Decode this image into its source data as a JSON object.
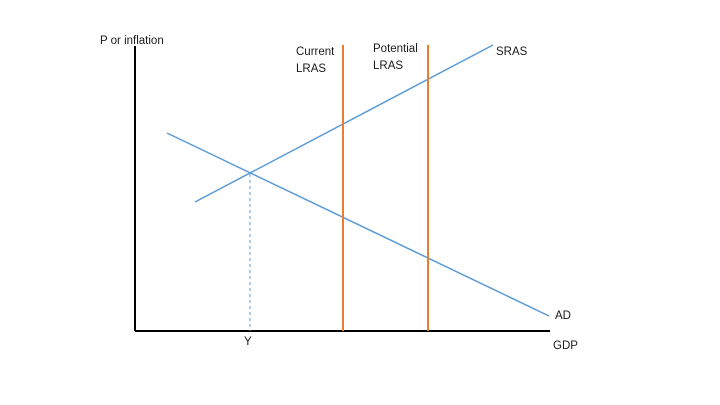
{
  "diagram": {
    "axes": {
      "y_label": "P or inflation",
      "x_label": "GDP"
    },
    "curves": {
      "sras": {
        "label": "SRAS"
      },
      "ad": {
        "label": "AD"
      },
      "current_lras": {
        "label_line1": "Current",
        "label_line2": "LRAS"
      },
      "potential_lras": {
        "label_line1": "Potential",
        "label_line2": "LRAS"
      }
    },
    "equilibrium": {
      "x_label": "Y"
    },
    "colors": {
      "axis": "#000000",
      "curve_blue": "#5b9bd5",
      "lras_orange": "#ed7d31",
      "text": "#1a1a1a"
    }
  }
}
